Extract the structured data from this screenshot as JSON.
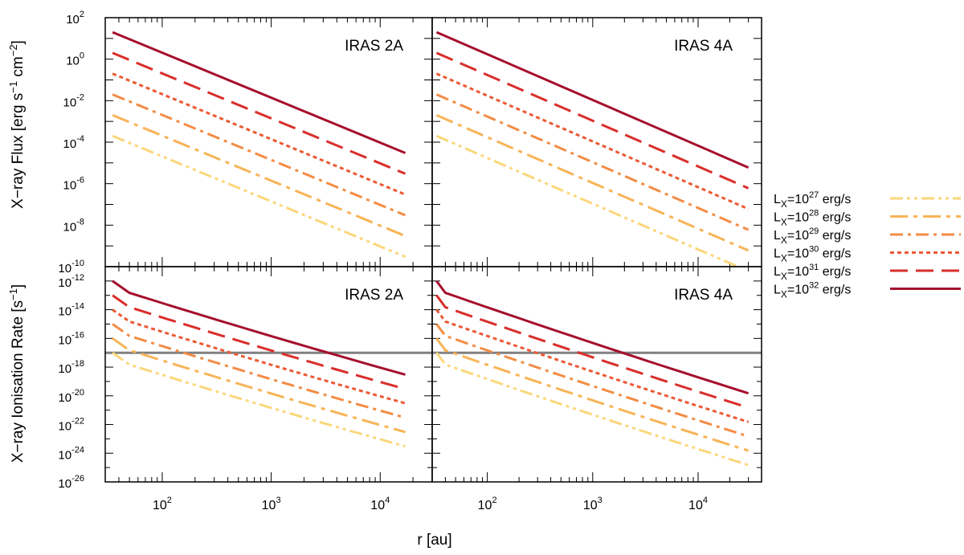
{
  "figure": {
    "xlabel": "r [au]",
    "ylabel_top_main": "X−ray Flux [erg s",
    "ylabel_top_sup1": "−1",
    "ylabel_top_mid": " cm",
    "ylabel_top_sup2": "−2",
    "ylabel_top_end": "]",
    "ylabel_bottom_main": "X−ray Ionisation Rate [s",
    "ylabel_bottom_sup": "−1",
    "ylabel_bottom_end": "]",
    "panel_titles": [
      "IRAS 2A",
      "IRAS 4A",
      "IRAS 2A",
      "IRAS 4A"
    ],
    "reference_line": {
      "y": 1e-17,
      "color": "#808080",
      "panels": [
        "bottom"
      ]
    }
  },
  "legend": {
    "position": "right",
    "entries": [
      {
        "label_prefix": "L",
        "label_sub": "X",
        "label_mid": "=10",
        "label_sup": "27",
        "label_suffix": " erg/s",
        "color": "#fbd77b",
        "dash": "dash-dot-dot"
      },
      {
        "label_prefix": "L",
        "label_sub": "X",
        "label_mid": "=10",
        "label_sup": "28",
        "label_suffix": " erg/s",
        "color": "#f8b457",
        "dash": "long-dash-dot"
      },
      {
        "label_prefix": "L",
        "label_sub": "X",
        "label_mid": "=10",
        "label_sup": "29",
        "label_suffix": " erg/s",
        "color": "#f38c45",
        "dash": "dash-dot"
      },
      {
        "label_prefix": "L",
        "label_sub": "X",
        "label_mid": "=10",
        "label_sup": "30",
        "label_suffix": " erg/s",
        "color": "#ec5a34",
        "dash": "dotted"
      },
      {
        "label_prefix": "L",
        "label_sub": "X",
        "label_mid": "=10",
        "label_sup": "31",
        "label_suffix": " erg/s",
        "color": "#d92e2b",
        "dash": "long-dash"
      },
      {
        "label_prefix": "L",
        "label_sub": "X",
        "label_mid": "=10",
        "label_sup": "32",
        "label_suffix": " erg/s",
        "color": "#a50f2d",
        "dash": "solid"
      }
    ]
  },
  "chart_data": [
    {
      "type": "line",
      "title": "IRAS 2A",
      "xlabel": "r [au]",
      "ylabel": "X-ray Flux [erg s^-1 cm^-2]",
      "xscale": "log",
      "yscale": "log",
      "xlim": [
        30,
        30000
      ],
      "ylim": [
        1e-10,
        100
      ],
      "x_ticks": [
        {
          "value": 100,
          "base": "10",
          "exp": "2"
        },
        {
          "value": 1000,
          "base": "10",
          "exp": "3"
        },
        {
          "value": 10000,
          "base": "10",
          "exp": "4"
        }
      ],
      "y_ticks": [
        {
          "value": 100,
          "base": "10",
          "exp": "2"
        },
        {
          "value": 1,
          "base": "10",
          "exp": "0"
        },
        {
          "value": 0.01,
          "base": "10",
          "exp": "-2"
        },
        {
          "value": 0.0001,
          "base": "10",
          "exp": "-4"
        },
        {
          "value": 1e-06,
          "base": "10",
          "exp": "-6"
        },
        {
          "value": 1e-08,
          "base": "10",
          "exp": "-8"
        },
        {
          "value": 1e-10,
          "base": "10",
          "exp": "-10"
        }
      ],
      "series": [
        {
          "name": "L_X=10^27 erg/s",
          "kind": "powerlaw",
          "x_range": [
            35,
            17000
          ],
          "y_start": 0.0002,
          "y_end": 3e-10
        },
        {
          "name": "L_X=10^28 erg/s",
          "kind": "powerlaw",
          "x_range": [
            35,
            17000
          ],
          "y_start": 0.002,
          "y_end": 3e-09
        },
        {
          "name": "L_X=10^29 erg/s",
          "kind": "powerlaw",
          "x_range": [
            35,
            17000
          ],
          "y_start": 0.02,
          "y_end": 3e-08
        },
        {
          "name": "L_X=10^30 erg/s",
          "kind": "powerlaw",
          "x_range": [
            35,
            17000
          ],
          "y_start": 0.2,
          "y_end": 3e-07
        },
        {
          "name": "L_X=10^31 erg/s",
          "kind": "powerlaw",
          "x_range": [
            35,
            17000
          ],
          "y_start": 2,
          "y_end": 3e-06
        },
        {
          "name": "L_X=10^32 erg/s",
          "kind": "powerlaw",
          "x_range": [
            35,
            17000
          ],
          "y_start": 20,
          "y_end": 3e-05
        }
      ]
    },
    {
      "type": "line",
      "title": "IRAS 4A",
      "xlabel": "r [au]",
      "ylabel": "X-ray Flux [erg s^-1 cm^-2]",
      "xscale": "log",
      "yscale": "log",
      "xlim": [
        30,
        40000
      ],
      "ylim": [
        1e-10,
        100
      ],
      "x_ticks": [
        {
          "value": 100,
          "base": "10",
          "exp": "2"
        },
        {
          "value": 1000,
          "base": "10",
          "exp": "3"
        },
        {
          "value": 10000,
          "base": "10",
          "exp": "4"
        }
      ],
      "y_ticks": [],
      "series": [
        {
          "name": "L_X=10^27 erg/s",
          "kind": "powerlaw",
          "x_range": [
            33,
            30000
          ],
          "y_start": 0.0002,
          "y_end": 6e-11
        },
        {
          "name": "L_X=10^28 erg/s",
          "kind": "powerlaw",
          "x_range": [
            33,
            30000
          ],
          "y_start": 0.002,
          "y_end": 6e-10
        },
        {
          "name": "L_X=10^29 erg/s",
          "kind": "powerlaw",
          "x_range": [
            33,
            30000
          ],
          "y_start": 0.02,
          "y_end": 6e-09
        },
        {
          "name": "L_X=10^30 erg/s",
          "kind": "powerlaw",
          "x_range": [
            33,
            30000
          ],
          "y_start": 0.2,
          "y_end": 6e-08
        },
        {
          "name": "L_X=10^31 erg/s",
          "kind": "powerlaw",
          "x_range": [
            33,
            30000
          ],
          "y_start": 2,
          "y_end": 6e-07
        },
        {
          "name": "L_X=10^32 erg/s",
          "kind": "powerlaw",
          "x_range": [
            33,
            30000
          ],
          "y_start": 20,
          "y_end": 6e-06
        }
      ]
    },
    {
      "type": "line",
      "title": "IRAS 2A",
      "xlabel": "r [au]",
      "ylabel": "X-ray Ionisation Rate [s^-1]",
      "xscale": "log",
      "yscale": "log",
      "xlim": [
        30,
        30000
      ],
      "ylim": [
        1e-26,
        1e-11
      ],
      "x_ticks": [
        {
          "value": 100,
          "base": "10",
          "exp": "2"
        },
        {
          "value": 1000,
          "base": "10",
          "exp": "3"
        },
        {
          "value": 10000,
          "base": "10",
          "exp": "4"
        }
      ],
      "y_ticks": [
        {
          "value": 1e-12,
          "base": "10",
          "exp": "-12"
        },
        {
          "value": 1e-14,
          "base": "10",
          "exp": "-14"
        },
        {
          "value": 1e-16,
          "base": "10",
          "exp": "-16"
        },
        {
          "value": 1e-18,
          "base": "10",
          "exp": "-18"
        },
        {
          "value": 1e-20,
          "base": "10",
          "exp": "-20"
        },
        {
          "value": 1e-22,
          "base": "10",
          "exp": "-22"
        },
        {
          "value": 1e-24,
          "base": "10",
          "exp": "-24"
        },
        {
          "value": 1e-26,
          "base": "10",
          "exp": "-26"
        }
      ],
      "series": [
        {
          "name": "L_X=10^27 erg/s",
          "kind": "kinked",
          "x_range": [
            35,
            17000
          ],
          "y_start": 1e-17,
          "y_knee": 1.5e-18,
          "x_knee": 50,
          "y_end": 3e-24
        },
        {
          "name": "L_X=10^28 erg/s",
          "kind": "kinked",
          "x_range": [
            35,
            17000
          ],
          "y_start": 1e-16,
          "y_knee": 1.5e-17,
          "x_knee": 50,
          "y_end": 3e-23
        },
        {
          "name": "L_X=10^29 erg/s",
          "kind": "kinked",
          "x_range": [
            35,
            17000
          ],
          "y_start": 1e-15,
          "y_knee": 1.5e-16,
          "x_knee": 50,
          "y_end": 3e-22
        },
        {
          "name": "L_X=10^30 erg/s",
          "kind": "kinked",
          "x_range": [
            35,
            17000
          ],
          "y_start": 1e-14,
          "y_knee": 1.5e-15,
          "x_knee": 50,
          "y_end": 3e-21
        },
        {
          "name": "L_X=10^31 erg/s",
          "kind": "kinked",
          "x_range": [
            35,
            17000
          ],
          "y_start": 1e-13,
          "y_knee": 1.5e-14,
          "x_knee": 50,
          "y_end": 3e-20
        },
        {
          "name": "L_X=10^32 erg/s",
          "kind": "kinked",
          "x_range": [
            35,
            17000
          ],
          "y_start": 1e-12,
          "y_knee": 1.5e-13,
          "x_knee": 50,
          "y_end": 3e-19
        }
      ]
    },
    {
      "type": "line",
      "title": "IRAS 4A",
      "xlabel": "r [au]",
      "ylabel": "X-ray Ionisation Rate [s^-1]",
      "xscale": "log",
      "yscale": "log",
      "xlim": [
        30,
        40000
      ],
      "ylim": [
        1e-26,
        1e-11
      ],
      "x_ticks": [
        {
          "value": 100,
          "base": "10",
          "exp": "2"
        },
        {
          "value": 1000,
          "base": "10",
          "exp": "3"
        },
        {
          "value": 10000,
          "base": "10",
          "exp": "4"
        }
      ],
      "y_ticks": [],
      "series": [
        {
          "name": "L_X=10^27 erg/s",
          "kind": "kinked",
          "x_range": [
            33,
            30000
          ],
          "y_start": 1e-17,
          "y_knee": 1.5e-18,
          "x_knee": 40,
          "y_end": 1.5e-25
        },
        {
          "name": "L_X=10^28 erg/s",
          "kind": "kinked",
          "x_range": [
            33,
            30000
          ],
          "y_start": 1e-16,
          "y_knee": 1.5e-17,
          "x_knee": 40,
          "y_end": 1.5e-24
        },
        {
          "name": "L_X=10^29 erg/s",
          "kind": "kinked",
          "x_range": [
            33,
            30000
          ],
          "y_start": 1e-15,
          "y_knee": 1.5e-16,
          "x_knee": 40,
          "y_end": 1.5e-23
        },
        {
          "name": "L_X=10^30 erg/s",
          "kind": "kinked",
          "x_range": [
            33,
            30000
          ],
          "y_start": 1e-14,
          "y_knee": 1.5e-15,
          "x_knee": 40,
          "y_end": 1.5e-22
        },
        {
          "name": "L_X=10^31 erg/s",
          "kind": "kinked",
          "x_range": [
            33,
            30000
          ],
          "y_start": 1e-13,
          "y_knee": 1.5e-14,
          "x_knee": 40,
          "y_end": 1.5e-21
        },
        {
          "name": "L_X=10^32 erg/s",
          "kind": "kinked",
          "x_range": [
            33,
            30000
          ],
          "y_start": 1e-12,
          "y_knee": 1.5e-13,
          "x_knee": 40,
          "y_end": 1.5e-20
        }
      ]
    }
  ]
}
